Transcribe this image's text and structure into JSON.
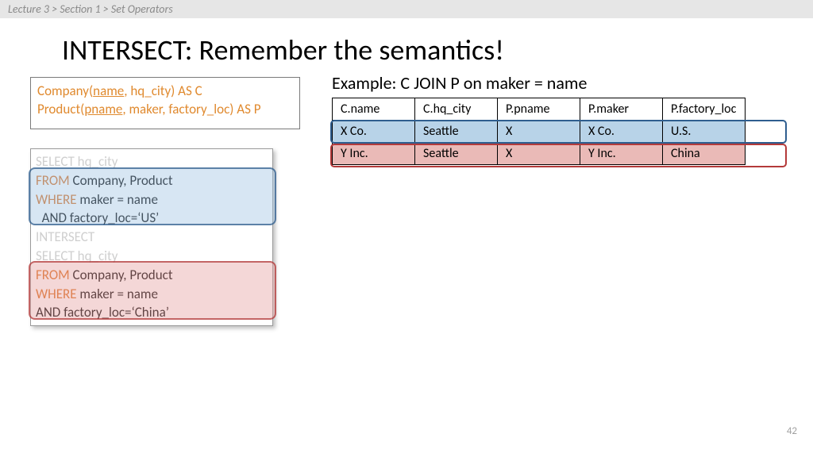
{
  "breadcrumb": "Lecture 3  >  Section 1  >  Set Operators",
  "title": "INTERSECT: Remember the semantics!",
  "schema": {
    "line1_a": "Company(",
    "line1_u": "name",
    "line1_b": ", hq_city) AS C",
    "line2_a": "Product(",
    "line2_u": "pname",
    "line2_b": ", maker, factory_loc) AS P",
    "color": "#e08a2f"
  },
  "sql": {
    "l1_kw": "SELECT",
    "l1": " hq_city",
    "l2_kw": "FROM",
    "l2": "   Company, Product",
    "l3_kw": "WHERE",
    "l3": "  maker = name",
    "l4_kw": "  AND",
    "l4": " factory_loc=‘US’",
    "l5_kw": "INTERSECT",
    "l5": "",
    "l6_kw": "SELECT",
    "l6": " hq_city",
    "l7_kw": "FROM",
    "l7": "   Company, Product",
    "l8_kw": "WHERE",
    "l8": "  maker = name",
    "l9_kw": "AND",
    "l9": " factory_loc=‘China’",
    "highlight_colors": {
      "blue_fill": "#b8d3e8",
      "blue_border": "#2f5e8f",
      "red_fill": "#eabab7",
      "red_border": "#b43a3a"
    }
  },
  "example": {
    "label": "Example:   C  JOIN  P on maker = name",
    "columns": [
      "C.name",
      "C.hq_city",
      "P.pname",
      "P.maker",
      "P.factory_loc"
    ],
    "rows": [
      {
        "cells": [
          "X Co.",
          "Seattle",
          "X",
          "X Co.",
          "U.S."
        ],
        "tint": "blue"
      },
      {
        "cells": [
          "Y Inc.",
          "Seattle",
          "X",
          "Y Inc.",
          "China"
        ],
        "tint": "red"
      }
    ]
  },
  "pagenum": "42",
  "colors": {
    "background": "#ffffff",
    "breadcrumb_bg": "#e6e6e6",
    "keyword": "#d96b1a",
    "faded": "#cfcfcf"
  }
}
